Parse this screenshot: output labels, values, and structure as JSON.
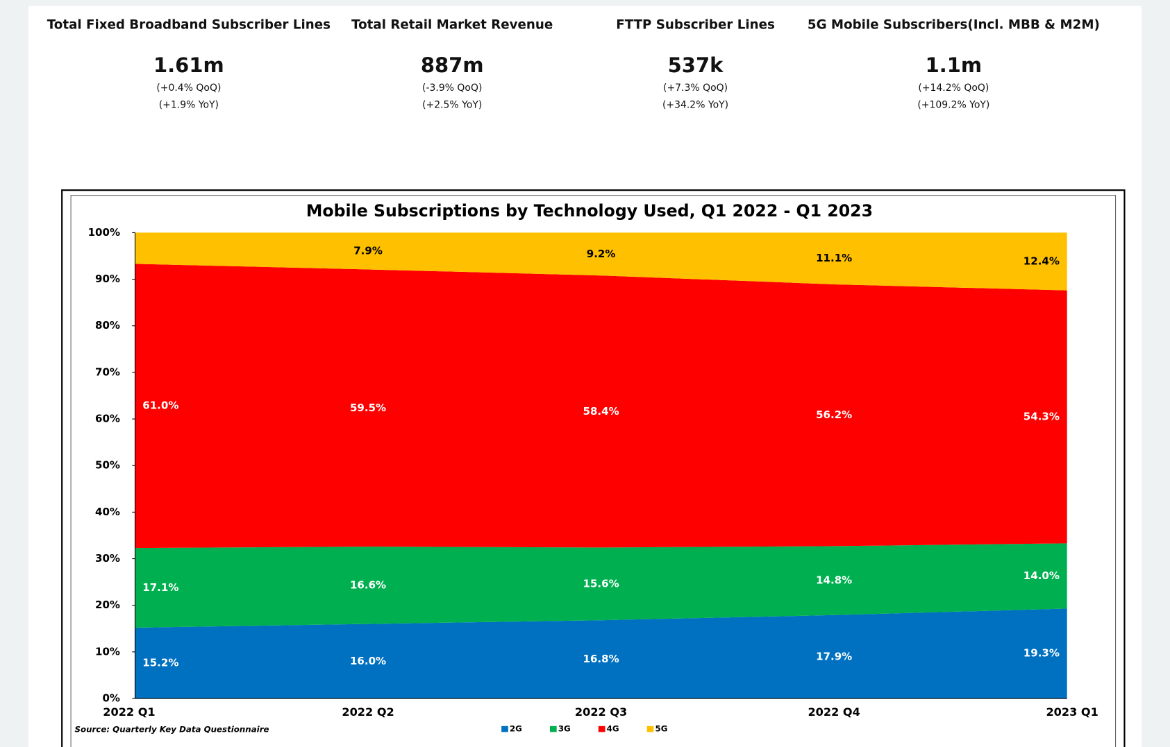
{
  "kpis": [
    {
      "title": "Total Fixed Broadband Subscriber Lines",
      "value": "1.61m",
      "qoq": "(+0.4% QoQ)",
      "yoy": "(+1.9% YoY)"
    },
    {
      "title": "Total Retail Market Revenue",
      "value": "887m",
      "qoq": "(-3.9% QoQ)",
      "yoy": "(+2.5% YoY)"
    },
    {
      "title": "FTTP Subscriber Lines",
      "value": "537k",
      "qoq": "(+7.3% QoQ)",
      "yoy": "(+34.2% YoY)"
    },
    {
      "title": "5G Mobile Subscribers(Incl. MBB & M2M)",
      "value": "1.1m",
      "qoq": "(+14.2% QoQ)",
      "yoy": "(+109.2% YoY)"
    }
  ],
  "chart_data": {
    "type": "stacked_area",
    "title": "Mobile Subscriptions by Technology Used, Q1 2022 - Q1 2023",
    "source": "Source:  Quarterly Key Data Questionnaire",
    "categories": [
      "2022 Q1",
      "2022 Q2",
      "2022 Q3",
      "2022 Q4",
      "2023 Q1"
    ],
    "series": [
      {
        "name": "2G",
        "color": "#0070c0",
        "values": [
          15.2,
          16.0,
          16.8,
          17.9,
          19.3
        ],
        "value_labels": [
          "15.2%",
          "16.0%",
          "16.8%",
          "17.9%",
          "19.3%"
        ]
      },
      {
        "name": "3G",
        "color": "#00b050",
        "values": [
          17.1,
          16.6,
          15.6,
          14.8,
          14.0
        ],
        "value_labels": [
          "17.1%",
          "16.6%",
          "15.6%",
          "14.8%",
          "14.0%"
        ]
      },
      {
        "name": "4G",
        "color": "#ff0000",
        "values": [
          61.0,
          59.5,
          58.4,
          56.2,
          54.3
        ],
        "value_labels": [
          "61.0%",
          "59.5%",
          "58.4%",
          "56.2%",
          "54.3%"
        ]
      },
      {
        "name": "5G",
        "color": "#ffc000",
        "values": [
          6.7,
          7.9,
          9.2,
          11.1,
          12.4
        ],
        "value_labels": [
          null,
          "7.9%",
          "9.2%",
          "11.1%",
          "12.4%"
        ]
      }
    ],
    "ylim": [
      0,
      100
    ],
    "yticks": [
      {
        "value": 0,
        "label": "0%"
      },
      {
        "value": 10,
        "label": "10%"
      },
      {
        "value": 20,
        "label": "20%"
      },
      {
        "value": 30,
        "label": "30%"
      },
      {
        "value": 40,
        "label": "40%"
      },
      {
        "value": 50,
        "label": "50%"
      },
      {
        "value": 60,
        "label": "60%"
      },
      {
        "value": 70,
        "label": "70%"
      },
      {
        "value": 80,
        "label": "80%"
      },
      {
        "value": 90,
        "label": "90%"
      },
      {
        "value": 100,
        "label": "100%"
      }
    ],
    "legend": "bottom"
  }
}
